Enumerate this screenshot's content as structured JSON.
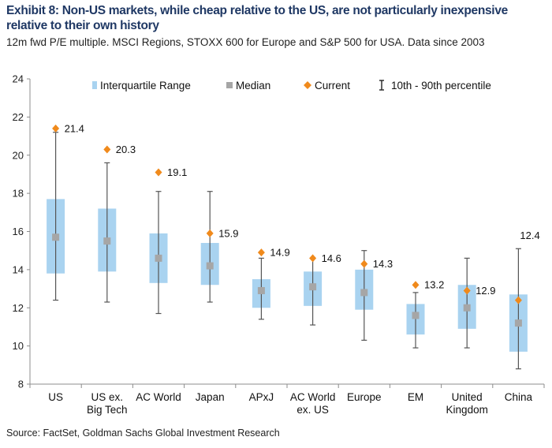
{
  "title": "Exhibit 8: Non-US markets, while cheap relative to the US, are not particularly inexpensive relative to their own history",
  "subtitle": "12m fwd P/E multiple. MSCI Regions, STOXX 600 for Europe and S&P 500 for USA. Data since 2003",
  "source": "Source: FactSet, Goldman Sachs Global Investment Research",
  "chart_data": {
    "type": "box",
    "ylim": [
      8,
      24
    ],
    "yticks": [
      8,
      10,
      12,
      14,
      16,
      18,
      20,
      22,
      24
    ],
    "grid": false,
    "legend_position": "top",
    "legend": [
      {
        "key": "iqr",
        "label": "Interquartile Range"
      },
      {
        "key": "median",
        "label": "Median"
      },
      {
        "key": "current",
        "label": "Current"
      },
      {
        "key": "range",
        "label": "10th - 90th percentile"
      }
    ],
    "colors": {
      "iqr": "#a9d3f0",
      "median": "#a6a6a6",
      "current": "#f08a1c",
      "whisker": "#555555"
    },
    "categories": [
      {
        "label": [
          "US"
        ],
        "p10": 12.4,
        "q1": 13.8,
        "median": 15.7,
        "q3": 17.7,
        "p90": 21.2,
        "current": 21.4,
        "current_label": "21.4"
      },
      {
        "label": [
          "US ex.",
          "Big Tech"
        ],
        "p10": 12.3,
        "q1": 13.9,
        "median": 15.5,
        "q3": 17.2,
        "p90": 19.6,
        "current": 20.3,
        "current_label": "20.3"
      },
      {
        "label": [
          "AC World"
        ],
        "p10": 11.7,
        "q1": 13.3,
        "median": 14.6,
        "q3": 15.9,
        "p90": 18.1,
        "current": 19.1,
        "current_label": "19.1"
      },
      {
        "label": [
          "Japan"
        ],
        "p10": 12.3,
        "q1": 13.2,
        "median": 14.2,
        "q3": 15.4,
        "p90": 18.1,
        "current": 15.9,
        "current_label": "15.9"
      },
      {
        "label": [
          "APxJ"
        ],
        "p10": 11.4,
        "q1": 12.0,
        "median": 12.9,
        "q3": 13.5,
        "p90": 14.6,
        "current": 14.9,
        "current_label": "14.9"
      },
      {
        "label": [
          "AC World",
          "ex. US"
        ],
        "p10": 11.1,
        "q1": 12.1,
        "median": 13.1,
        "q3": 13.9,
        "p90": 14.6,
        "current": 14.6,
        "current_label": "14.6"
      },
      {
        "label": [
          "Europe"
        ],
        "p10": 10.3,
        "q1": 11.9,
        "median": 12.8,
        "q3": 14.0,
        "p90": 15.0,
        "current": 14.3,
        "current_label": "14.3"
      },
      {
        "label": [
          "EM"
        ],
        "p10": 9.9,
        "q1": 10.6,
        "median": 11.6,
        "q3": 12.2,
        "p90": 12.8,
        "current": 13.2,
        "current_label": "13.2"
      },
      {
        "label": [
          "United",
          "Kingdom"
        ],
        "p10": 9.9,
        "q1": 10.9,
        "median": 12.0,
        "q3": 13.2,
        "p90": 14.6,
        "current": 12.9,
        "current_label": "12.9"
      },
      {
        "label": [
          "China"
        ],
        "p10": 8.8,
        "q1": 9.7,
        "median": 11.2,
        "q3": 12.7,
        "p90": 15.1,
        "current": 12.4,
        "current_label": "12.4"
      }
    ]
  }
}
